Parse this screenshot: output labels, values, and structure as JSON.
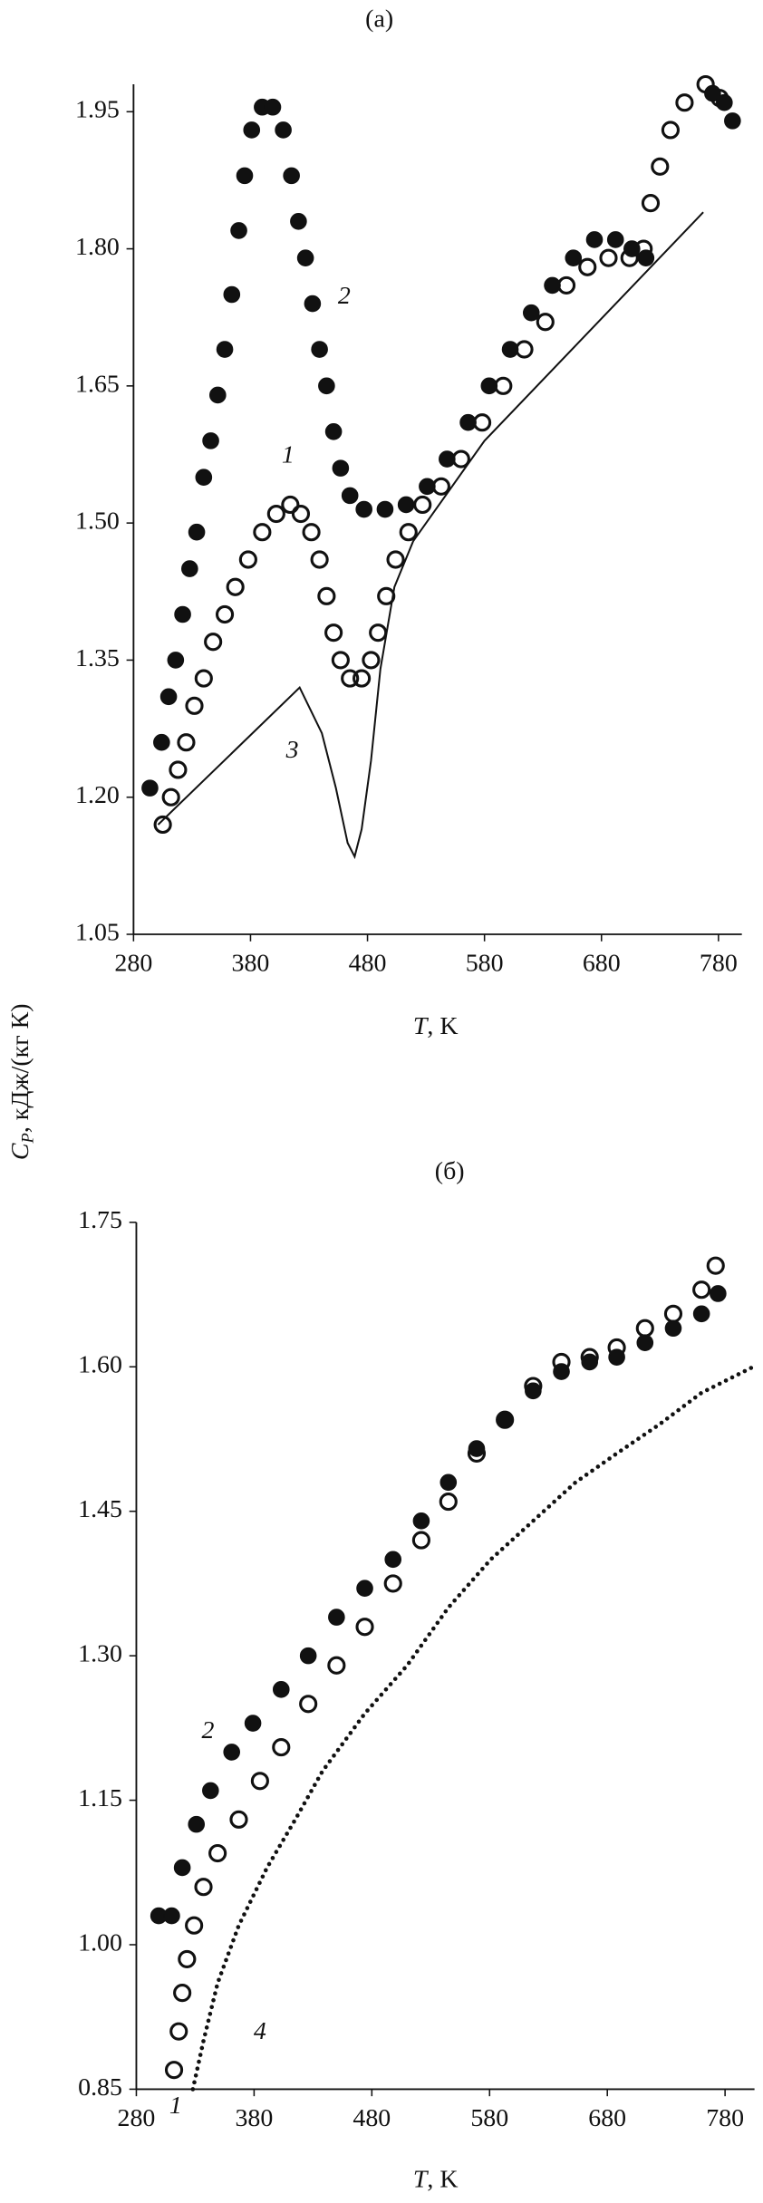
{
  "chart_data": [
    {
      "type": "scatter",
      "title": "(a)",
      "y_label_symbol": "C",
      "y_label_subscript": "P",
      "y_label_rest": ", кДж/(кг К)",
      "x_label_symbol": "T",
      "x_label_rest": ", K",
      "xlim": [
        280,
        800
      ],
      "xticks": [
        280,
        380,
        480,
        580,
        680,
        780
      ],
      "ylim": [
        1.05,
        1.98
      ],
      "yticks": [
        1.05,
        {
          "value": 1.2,
          "label": "1.20"
        },
        1.35,
        {
          "value": 1.5,
          "label": "1.50"
        },
        1.65,
        {
          "value": 1.8,
          "label": "1.80"
        },
        1.95
      ],
      "series": [
        {
          "name": "1",
          "marker": "open",
          "color": "#111111",
          "x": [
            305,
            312,
            318,
            325,
            332,
            340,
            348,
            358,
            367,
            378,
            390,
            402,
            414,
            423,
            432,
            439,
            445,
            451,
            457,
            465,
            475,
            483,
            489,
            496,
            504,
            515,
            527,
            543,
            560,
            578,
            596,
            614,
            632,
            650,
            668,
            686,
            704,
            716,
            722,
            730,
            739,
            751,
            769,
            781
          ],
          "values": [
            1.17,
            1.2,
            1.23,
            1.26,
            1.3,
            1.33,
            1.37,
            1.4,
            1.43,
            1.46,
            1.49,
            1.51,
            1.52,
            1.51,
            1.49,
            1.46,
            1.42,
            1.38,
            1.35,
            1.33,
            1.33,
            1.35,
            1.38,
            1.42,
            1.46,
            1.49,
            1.52,
            1.54,
            1.57,
            1.61,
            1.65,
            1.69,
            1.72,
            1.76,
            1.78,
            1.79,
            1.79,
            1.8,
            1.85,
            1.89,
            1.93,
            1.96,
            1.98,
            1.965
          ]
        },
        {
          "name": "2",
          "marker": "filled",
          "color": "#111111",
          "x": [
            294,
            304,
            310,
            316,
            322,
            328,
            334,
            340,
            346,
            352,
            358,
            364,
            370,
            375,
            381,
            390,
            399,
            408,
            415,
            421,
            427,
            433,
            439,
            445,
            451,
            457,
            465,
            477,
            495,
            513,
            531,
            548,
            566,
            584,
            602,
            620,
            638,
            656,
            674,
            692,
            706,
            718,
            775,
            785,
            792
          ],
          "values": [
            1.21,
            1.26,
            1.31,
            1.35,
            1.4,
            1.45,
            1.49,
            1.55,
            1.59,
            1.64,
            1.69,
            1.75,
            1.82,
            1.88,
            1.93,
            1.955,
            1.955,
            1.93,
            1.88,
            1.83,
            1.79,
            1.74,
            1.69,
            1.65,
            1.6,
            1.56,
            1.53,
            1.515,
            1.515,
            1.52,
            1.54,
            1.57,
            1.61,
            1.65,
            1.69,
            1.73,
            1.76,
            1.79,
            1.81,
            1.81,
            1.8,
            1.79,
            1.97,
            1.96,
            1.94
          ]
        },
        {
          "name": "3",
          "marker": "line",
          "color": "#111111",
          "x": [
            301,
            422,
            441,
            453,
            463,
            469,
            475,
            483,
            491,
            503,
            519,
            580,
            767
          ],
          "values": [
            1.17,
            1.32,
            1.27,
            1.21,
            1.15,
            1.135,
            1.165,
            1.24,
            1.34,
            1.43,
            1.48,
            1.59,
            1.84
          ]
        }
      ]
    },
    {
      "type": "scatter",
      "title": "(б)",
      "x_label_symbol": "T",
      "x_label_rest": ", K",
      "xlim": [
        280,
        805
      ],
      "xticks": [
        280,
        380,
        480,
        580,
        680,
        780
      ],
      "ylim": [
        0.85,
        1.75
      ],
      "yticks": [
        0.85,
        {
          "value": 1.0,
          "label": "1.00"
        },
        1.15,
        {
          "value": 1.3,
          "label": "1.30"
        },
        1.45,
        {
          "value": 1.6,
          "label": "1.60"
        },
        1.75
      ],
      "series": [
        {
          "name": "1",
          "marker": "open",
          "color": "#111111",
          "x": [
            312,
            316,
            319,
            323,
            329,
            337,
            349,
            367,
            385,
            403,
            426,
            450,
            474,
            498,
            522,
            545,
            569,
            593,
            617,
            641,
            665,
            688,
            712,
            736,
            760,
            772
          ],
          "values": [
            0.87,
            0.91,
            0.95,
            0.985,
            1.02,
            1.06,
            1.095,
            1.13,
            1.17,
            1.205,
            1.25,
            1.29,
            1.33,
            1.375,
            1.42,
            1.46,
            1.51,
            1.545,
            1.58,
            1.605,
            1.61,
            1.62,
            1.64,
            1.655,
            1.68,
            1.705
          ]
        },
        {
          "name": "2",
          "marker": "filled",
          "color": "#111111",
          "x": [
            299,
            310,
            319,
            331,
            343,
            361,
            379,
            403,
            426,
            450,
            474,
            498,
            522,
            545,
            569,
            593,
            617,
            641,
            665,
            688,
            712,
            736,
            760,
            774
          ],
          "values": [
            1.03,
            1.03,
            1.08,
            1.125,
            1.16,
            1.2,
            1.23,
            1.265,
            1.3,
            1.34,
            1.37,
            1.4,
            1.44,
            1.48,
            1.515,
            1.545,
            1.575,
            1.595,
            1.605,
            1.61,
            1.625,
            1.64,
            1.655,
            1.676
          ]
        },
        {
          "name": "4",
          "marker": "dotted",
          "color": "#111111",
          "x": [
            328,
            337,
            349,
            367,
            391,
            415,
            438,
            474,
            510,
            545,
            581,
            617,
            653,
            688,
            724,
            760,
            804
          ],
          "values": [
            0.85,
            0.9,
            0.96,
            1.02,
            1.08,
            1.13,
            1.18,
            1.24,
            1.29,
            1.35,
            1.4,
            1.44,
            1.48,
            1.51,
            1.54,
            1.573,
            1.6
          ]
        }
      ]
    }
  ]
}
